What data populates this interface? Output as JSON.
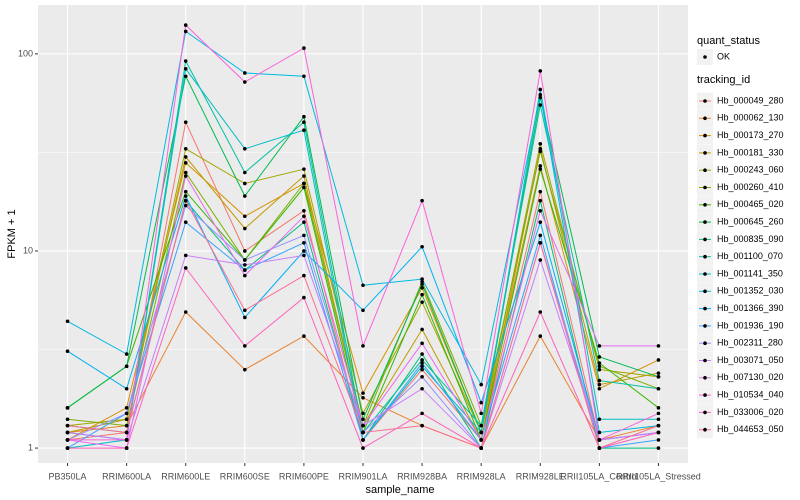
{
  "chart_data": {
    "type": "line",
    "x_label": "sample_name",
    "y_label": "FPKM + 1",
    "log_y": true,
    "grid": true,
    "categories": [
      "PB350LA",
      "RRIM600LA",
      "RRIM600LE",
      "RRIM600SE",
      "RRIM600PE",
      "RRIM901LA",
      "RRIM928BA",
      "RRIM928LA",
      "RRIM928LE",
      "RRII105LA_Control",
      "RRII105LA_Stressed"
    ],
    "ylim": [
      0.84,
      177
    ],
    "yticks": [
      1,
      10,
      100
    ],
    "point_legend_title": "quant_status",
    "point_legend_levels": [
      "OK"
    ],
    "point_color": "#000000",
    "legend_title": "tracking_id",
    "legend_position": "right",
    "series": [
      {
        "name": "Hb_000049_280",
        "color": "#F8766D",
        "values": [
          1.1,
          1.2,
          45,
          10,
          16,
          1.1,
          2.5,
          1.1,
          20,
          1.1,
          1.2
        ]
      },
      {
        "name": "Hb_000062_130",
        "color": "#EA8331",
        "values": [
          1.2,
          1.3,
          4.9,
          2.5,
          3.7,
          1.8,
          1.3,
          1.0,
          3.7,
          1.1,
          1.3
        ]
      },
      {
        "name": "Hb_000173_270",
        "color": "#D89000",
        "values": [
          1.1,
          1.6,
          28,
          15,
          22,
          1.9,
          6.5,
          1.2,
          27,
          2.0,
          2.8
        ]
      },
      {
        "name": "Hb_000181_330",
        "color": "#C09B00",
        "values": [
          1.2,
          1.4,
          30,
          13,
          24,
          1.3,
          4,
          1.1,
          33,
          2.1,
          2.4
        ]
      },
      {
        "name": "Hb_000243_060",
        "color": "#A3A500",
        "values": [
          1.3,
          1.4,
          33,
          22,
          26,
          1.5,
          5.5,
          1.2,
          35,
          2.5,
          2.3
        ]
      },
      {
        "name": "Hb_000260_410",
        "color": "#7CAE00",
        "values": [
          1.4,
          1.3,
          25,
          9,
          22,
          1.3,
          7,
          1.3,
          32,
          2.6,
          2.0
        ]
      },
      {
        "name": "Hb_000465_020",
        "color": "#39B600",
        "values": [
          1.6,
          2.6,
          20,
          9,
          21,
          1.2,
          6,
          1.1,
          26,
          2.7,
          1.6
        ]
      },
      {
        "name": "Hb_000645_260",
        "color": "#00BB4E",
        "values": [
          1.6,
          2.6,
          77,
          19,
          48,
          1.4,
          6.8,
          1.2,
          60,
          2.9,
          2.3
        ]
      },
      {
        "name": "Hb_000835_090",
        "color": "#00BF7D",
        "values": [
          1.3,
          1.2,
          18,
          8,
          14,
          1.1,
          3,
          1.0,
          18,
          1.0,
          1.0
        ]
      },
      {
        "name": "Hb_001100_070",
        "color": "#00C1A3",
        "values": [
          1.2,
          1.1,
          92,
          25,
          45,
          1.2,
          2.8,
          1.3,
          55,
          2.2,
          2.0
        ]
      },
      {
        "name": "Hb_001141_350",
        "color": "#00BFC4",
        "values": [
          1.0,
          1.1,
          84,
          33,
          41,
          1.1,
          2.6,
          1.2,
          66,
          1.4,
          1.4
        ]
      },
      {
        "name": "Hb_001352_030",
        "color": "#00BAE0",
        "values": [
          4.4,
          3.0,
          130,
          80,
          77,
          6.7,
          7.2,
          2.1,
          62,
          1.2,
          1.3
        ]
      },
      {
        "name": "Hb_001366_390",
        "color": "#00B0F6",
        "values": [
          3.1,
          2.0,
          19,
          4.6,
          10,
          5.0,
          10.5,
          1.7,
          14,
          1.1,
          1.2
        ]
      },
      {
        "name": "Hb_001936_190",
        "color": "#35A2FF",
        "values": [
          1.0,
          1.5,
          14,
          8,
          11,
          1.1,
          2.7,
          1.1,
          12,
          1.0,
          1.1
        ]
      },
      {
        "name": "Hb_002311_280",
        "color": "#9590FF",
        "values": [
          1.1,
          1.5,
          17,
          9,
          12,
          1.2,
          2.3,
          1.0,
          11,
          1.1,
          1.2
        ]
      },
      {
        "name": "Hb_003071_050",
        "color": "#C77CFF",
        "values": [
          1.2,
          1.1,
          9.5,
          8.5,
          9.5,
          1.3,
          2.0,
          1.0,
          9,
          1.1,
          1.2
        ]
      },
      {
        "name": "Hb_007130_020",
        "color": "#E76BF3",
        "values": [
          1.1,
          1.0,
          24,
          7.5,
          15,
          1.3,
          3.4,
          1.1,
          16,
          3.3,
          3.3
        ]
      },
      {
        "name": "Hb_010534_040",
        "color": "#FA62DB",
        "values": [
          1.1,
          1.1,
          140,
          72,
          107,
          3.3,
          18,
          1.5,
          82,
          1.1,
          1.5
        ]
      },
      {
        "name": "Hb_033006_020",
        "color": "#FF62BC",
        "values": [
          1.0,
          1.0,
          8.2,
          3.3,
          5.8,
          1.0,
          1.5,
          1.0,
          4.9,
          1.0,
          1.2
        ]
      },
      {
        "name": "Hb_044653_050",
        "color": "#FF6C91",
        "values": [
          1.3,
          1.2,
          18,
          5,
          7.5,
          1.2,
          1.3,
          1.0,
          11,
          1.0,
          1.3
        ]
      }
    ]
  }
}
